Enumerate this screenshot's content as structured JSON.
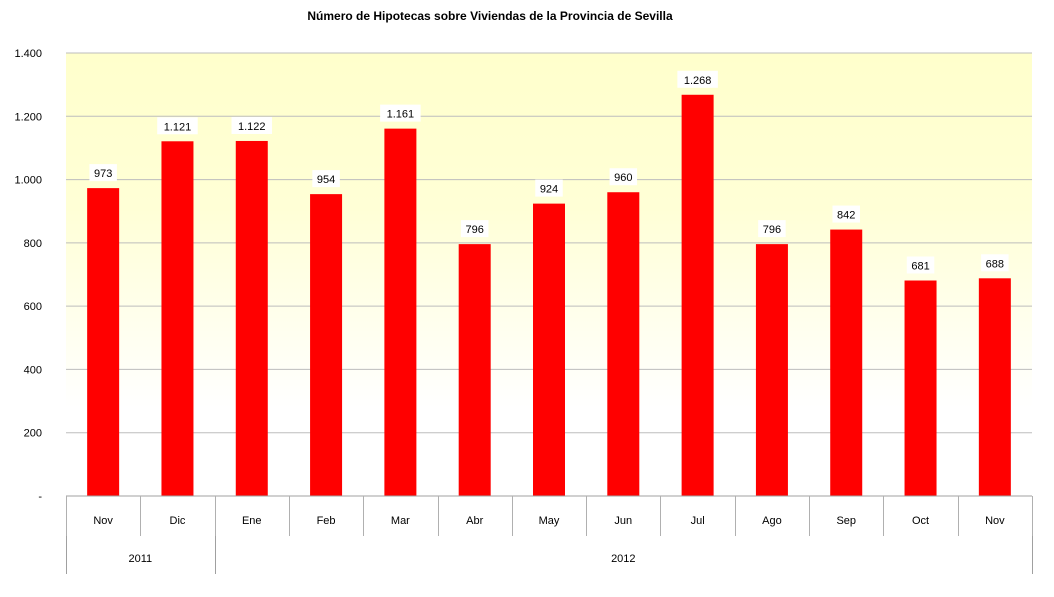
{
  "chart_data": {
    "type": "bar",
    "title": "Número de Hipotecas sobre Viviendas de la Provincia de Sevilla",
    "xlabel": "",
    "ylabel": "",
    "ylim": [
      0,
      1400
    ],
    "grid": true,
    "legend": "none",
    "yticks": [
      0,
      200,
      400,
      600,
      800,
      1000,
      1200,
      1400
    ],
    "ytick_labels": [
      "-",
      "200",
      "400",
      "600",
      "800",
      "1.000",
      "1.200",
      "1.400"
    ],
    "categories": [
      "Nov",
      "Dic",
      "Ene",
      "Feb",
      "Mar",
      "Abr",
      "May",
      "Jun",
      "Jul",
      "Ago",
      "Sep",
      "Oct",
      "Nov"
    ],
    "groups": [
      {
        "label": "2011",
        "count": 2
      },
      {
        "label": "2012",
        "count": 11
      }
    ],
    "values": [
      973,
      1121,
      1122,
      954,
      1161,
      796,
      924,
      960,
      1268,
      796,
      842,
      681,
      688
    ],
    "data_labels": [
      "973",
      "1.121",
      "1.122",
      "954",
      "1.161",
      "796",
      "924",
      "960",
      "1.268",
      "796",
      "842",
      "681",
      "688"
    ],
    "bar_color": "#ff0000",
    "background_top_color": "#ffffcc"
  }
}
